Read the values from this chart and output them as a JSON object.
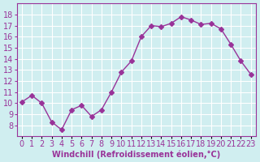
{
  "x": [
    0,
    1,
    2,
    3,
    4,
    5,
    6,
    7,
    8,
    9,
    10,
    11,
    12,
    13,
    14,
    15,
    16,
    17,
    18,
    19,
    20,
    21,
    22,
    23
  ],
  "y": [
    10.1,
    10.7,
    10.0,
    8.3,
    7.6,
    9.4,
    9.8,
    8.8,
    9.4,
    11.0,
    12.8,
    13.8,
    16.0,
    17.0,
    16.9,
    17.2,
    17.8,
    17.5,
    17.1,
    17.2,
    16.7,
    15.3,
    13.8,
    12.6
  ],
  "line_color": "#993399",
  "marker": "D",
  "marker_size": 3,
  "bg_color": "#d0eef0",
  "grid_color": "#ffffff",
  "xlabel": "Windchill (Refroidissement éolien,°C)",
  "xlabel_color": "#993399",
  "tick_color": "#993399",
  "ylim": [
    7,
    19
  ],
  "xlim": [
    -0.5,
    23.5
  ],
  "yticks": [
    8,
    9,
    10,
    11,
    12,
    13,
    14,
    15,
    16,
    17,
    18
  ],
  "xticks": [
    0,
    1,
    2,
    3,
    4,
    5,
    6,
    7,
    8,
    9,
    10,
    11,
    12,
    13,
    14,
    15,
    16,
    17,
    18,
    19,
    20,
    21,
    22,
    23
  ],
  "xtick_labels": [
    "0",
    "1",
    "2",
    "3",
    "4",
    "5",
    "6",
    "7",
    "8",
    "9",
    "10",
    "11",
    "12",
    "13",
    "14",
    "15",
    "16",
    "17",
    "18",
    "19",
    "20",
    "21",
    "22",
    "23"
  ],
  "spine_color": "#993399",
  "font_size": 7
}
